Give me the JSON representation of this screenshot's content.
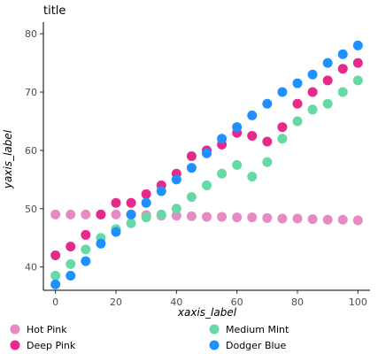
{
  "chart_data": {
    "type": "scatter",
    "title": "title",
    "xlabel": "xaxis_label",
    "ylabel": "yaxis_label",
    "xlim": [
      -4,
      104
    ],
    "ylim": [
      36,
      82
    ],
    "xticks": [
      0,
      20,
      40,
      60,
      80,
      100
    ],
    "yticks": [
      40,
      50,
      60,
      70,
      80
    ],
    "grid": false,
    "legend_position": "bottom",
    "series": [
      {
        "name": "Hot Pink",
        "color": "#E78AC3",
        "x": [
          0,
          5,
          10,
          15,
          20,
          25,
          30,
          35,
          40,
          45,
          50,
          55,
          60,
          65,
          70,
          75,
          80,
          85,
          90,
          95,
          100
        ],
        "y": [
          49,
          49,
          49,
          49,
          49,
          49,
          48.9,
          48.8,
          48.8,
          48.7,
          48.6,
          48.6,
          48.5,
          48.5,
          48.4,
          48.3,
          48.3,
          48.2,
          48.1,
          48.1,
          48
        ]
      },
      {
        "name": "Medium Mint",
        "color": "#66D9A6",
        "x": [
          0,
          5,
          10,
          15,
          20,
          25,
          30,
          35,
          40,
          45,
          50,
          55,
          60,
          65,
          70,
          75,
          80,
          85,
          90,
          95,
          100
        ],
        "y": [
          38.5,
          40.5,
          43,
          45,
          46.5,
          47.5,
          48.5,
          49,
          50,
          52,
          54,
          56,
          57.5,
          55.5,
          58,
          62,
          65,
          67,
          68,
          70,
          72
        ]
      },
      {
        "name": "Deep Pink",
        "color": "#E7298A",
        "x": [
          0,
          5,
          10,
          15,
          20,
          25,
          30,
          35,
          40,
          45,
          50,
          55,
          60,
          65,
          70,
          75,
          80,
          85,
          90,
          95,
          100
        ],
        "y": [
          42,
          43.5,
          45.5,
          49,
          51,
          51,
          52.5,
          54,
          56,
          59,
          60,
          61,
          63,
          62.5,
          61.5,
          64,
          68,
          70,
          72,
          74,
          75
        ]
      },
      {
        "name": "Dodger Blue",
        "color": "#1E90FF",
        "x": [
          0,
          5,
          10,
          15,
          20,
          25,
          30,
          35,
          40,
          45,
          50,
          55,
          60,
          65,
          70,
          75,
          80,
          85,
          90,
          95,
          100
        ],
        "y": [
          37,
          38.5,
          41,
          44,
          46,
          49,
          51,
          53,
          55,
          57,
          59.5,
          62,
          64,
          66,
          68,
          70,
          71.5,
          73,
          75,
          76.5,
          78
        ]
      }
    ]
  }
}
